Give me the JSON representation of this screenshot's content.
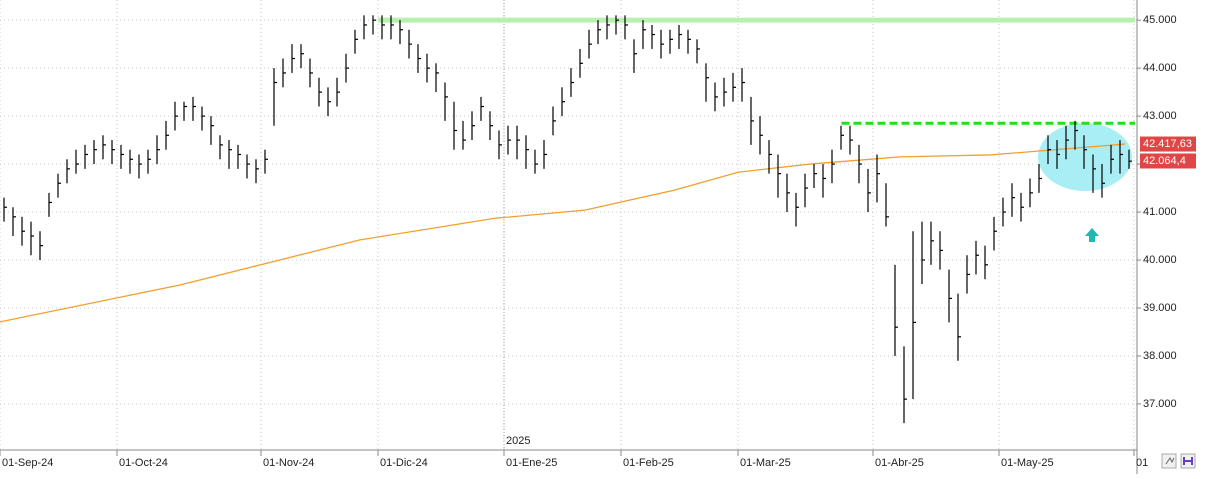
{
  "chart_data": {
    "type": "ohlc",
    "xlim": [
      0,
      126
    ],
    "xticks": [
      {
        "value": 0,
        "label": "01-Sep-24"
      },
      {
        "value": 13,
        "label": "01-Oct-24"
      },
      {
        "value": 29,
        "label": "01-Nov-24"
      },
      {
        "value": 42,
        "label": "01-Dic-24"
      },
      {
        "value": 56,
        "label": "01-Ene-25"
      },
      {
        "value": 69,
        "label": "01-Feb-25"
      },
      {
        "value": 82,
        "label": "01-Mar-25"
      },
      {
        "value": 97,
        "label": "01-Abr-25"
      },
      {
        "value": 111,
        "label": "01-May-25"
      },
      {
        "value": 126,
        "label": "01"
      }
    ],
    "ylim": [
      36.04,
      45.42
    ],
    "yticks": [
      {
        "value": 37,
        "label": "37.000"
      },
      {
        "value": 38,
        "label": "38.000"
      },
      {
        "value": 39,
        "label": "39.000"
      },
      {
        "value": 40,
        "label": "40.000"
      },
      {
        "value": 41,
        "label": "41.000"
      },
      {
        "value": 42,
        "label": "42.000"
      },
      {
        "value": 43,
        "label": "43.000"
      },
      {
        "value": 44,
        "label": "44.000"
      },
      {
        "value": 45,
        "label": "45.000"
      }
    ],
    "grid": true,
    "annotation": {
      "text": "2025",
      "x": 56
    },
    "color": "#000000",
    "high": [
      41.3,
      41.1,
      40.9,
      40.8,
      40.6,
      41.4,
      41.8,
      42.1,
      42.3,
      42.4,
      42.5,
      42.6,
      42.5,
      42.4,
      42.3,
      42.2,
      42.3,
      42.6,
      42.9,
      43.3,
      43.3,
      43.4,
      43.2,
      43.0,
      42.6,
      42.5,
      42.4,
      42.2,
      42.1,
      42.3,
      44.0,
      44.2,
      44.5,
      44.5,
      44.2,
      43.8,
      43.6,
      43.8,
      44.3,
      44.8,
      45.1,
      45.1,
      45.1,
      45.1,
      45.0,
      44.8,
      44.5,
      44.3,
      44.1,
      43.7,
      43.3,
      42.9,
      43.1,
      43.4,
      43.1,
      42.7,
      42.8,
      42.8,
      42.6,
      42.3,
      42.5,
      43.2,
      43.6,
      44.0,
      44.4,
      44.8,
      45.0,
      45.1,
      45.1,
      45.1,
      44.6,
      45.0,
      44.9,
      44.8,
      44.8,
      44.9,
      44.8,
      44.6,
      44.1,
      43.7,
      43.8,
      43.9,
      44.0,
      43.4,
      43.0,
      42.5,
      42.2,
      41.8,
      41.4,
      41.8,
      42.0,
      42.0,
      42.3,
      42.8,
      42.8,
      42.4,
      41.9,
      42.2,
      41.6,
      39.9,
      38.2,
      40.6,
      40.8,
      40.8,
      40.6,
      39.8,
      39.3,
      40.1,
      40.4,
      40.3,
      40.9,
      41.3,
      41.6,
      41.4,
      41.7,
      42.0,
      42.6,
      42.5,
      42.8,
      42.9,
      42.6,
      42.2,
      42.0,
      42.4,
      42.5,
      42.3
    ],
    "low": [
      40.8,
      40.5,
      40.3,
      40.1,
      40.0,
      40.9,
      41.3,
      41.6,
      41.8,
      41.9,
      42.0,
      42.1,
      42.0,
      41.9,
      41.8,
      41.7,
      41.8,
      42.0,
      42.3,
      42.7,
      42.9,
      42.9,
      42.7,
      42.4,
      42.1,
      41.9,
      41.9,
      41.7,
      41.6,
      41.8,
      42.8,
      43.6,
      43.9,
      44.0,
      43.6,
      43.2,
      43.0,
      43.2,
      43.7,
      44.3,
      44.6,
      44.7,
      44.6,
      44.6,
      44.5,
      44.2,
      43.9,
      43.7,
      43.5,
      42.9,
      42.3,
      42.3,
      42.5,
      42.9,
      42.5,
      42.1,
      42.2,
      42.1,
      41.9,
      41.8,
      41.9,
      42.6,
      43.0,
      43.4,
      43.8,
      44.2,
      44.5,
      44.6,
      44.7,
      44.6,
      43.9,
      44.4,
      44.4,
      44.2,
      44.3,
      44.4,
      44.3,
      44.1,
      43.3,
      43.1,
      43.2,
      43.3,
      43.3,
      42.4,
      42.2,
      41.8,
      41.3,
      41.0,
      40.7,
      41.1,
      41.5,
      41.3,
      41.6,
      42.3,
      42.2,
      41.6,
      41.0,
      41.2,
      40.7,
      38.0,
      36.6,
      37.1,
      39.5,
      39.9,
      39.8,
      38.7,
      37.9,
      39.3,
      39.7,
      39.6,
      40.2,
      40.7,
      40.9,
      40.8,
      41.1,
      41.4,
      42.0,
      41.9,
      42.1,
      42.3,
      41.9,
      41.4,
      41.3,
      41.8,
      41.8,
      41.9
    ],
    "close": [
      41.1,
      40.9,
      40.6,
      40.5,
      40.3,
      41.2,
      41.6,
      41.9,
      42.0,
      42.2,
      42.3,
      42.4,
      42.3,
      42.2,
      42.1,
      42.0,
      42.1,
      42.3,
      42.6,
      43.0,
      43.2,
      43.2,
      43.0,
      42.8,
      42.4,
      42.3,
      42.2,
      42.0,
      41.9,
      42.1,
      43.7,
      43.9,
      44.2,
      44.3,
      43.9,
      43.5,
      43.3,
      43.5,
      44.0,
      44.6,
      44.9,
      45.0,
      44.9,
      44.9,
      44.8,
      44.5,
      44.2,
      44.0,
      43.9,
      43.4,
      42.7,
      42.5,
      42.8,
      43.2,
      42.8,
      42.4,
      42.5,
      42.5,
      42.3,
      42.0,
      42.2,
      42.9,
      43.3,
      43.7,
      44.1,
      44.5,
      44.8,
      44.9,
      45.0,
      44.9,
      44.3,
      44.8,
      44.7,
      44.5,
      44.6,
      44.7,
      44.6,
      44.4,
      43.8,
      43.4,
      43.5,
      43.6,
      43.7,
      42.9,
      42.6,
      42.2,
      41.8,
      41.4,
      41.1,
      41.5,
      41.8,
      41.7,
      42.0,
      42.6,
      42.5,
      42.0,
      41.4,
      41.8,
      40.9,
      38.6,
      37.1,
      38.7,
      40.0,
      40.4,
      40.2,
      39.2,
      38.4,
      39.7,
      40.1,
      39.9,
      40.6,
      41.0,
      41.3,
      41.1,
      41.4,
      41.7,
      42.3,
      42.2,
      42.5,
      42.7,
      42.3,
      41.9,
      41.6,
      42.1,
      42.2,
      42.06
    ],
    "ma": {
      "color": "#f0a030",
      "x": [
        0,
        20,
        40,
        55,
        65,
        75,
        82,
        90,
        100,
        110,
        125
      ],
      "values": [
        38.71,
        39.48,
        40.42,
        40.87,
        41.04,
        41.46,
        41.83,
        42.0,
        42.15,
        42.19,
        42.417
      ]
    },
    "levels": [
      {
        "value": 45.0,
        "from": 42,
        "color": "#b8f0b0",
        "style": "solid"
      },
      {
        "value": 42.85,
        "from": 93.5,
        "color": "#22dd22",
        "style": "dashed"
      }
    ],
    "price_labels": [
      {
        "value": 42.41763,
        "label": "42.417,63"
      },
      {
        "value": 42.0644,
        "label": "42.064,4"
      }
    ]
  }
}
